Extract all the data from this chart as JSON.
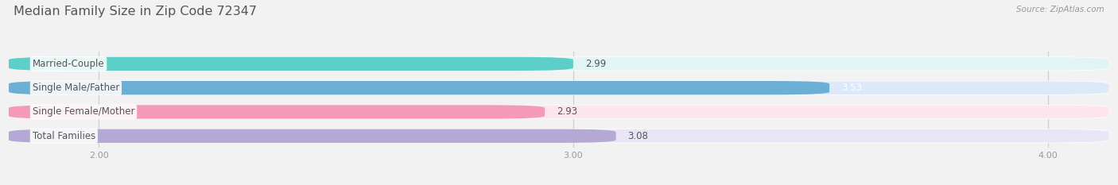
{
  "title": "Median Family Size in Zip Code 72347",
  "source": "Source: ZipAtlas.com",
  "categories": [
    "Married-Couple",
    "Single Male/Father",
    "Single Female/Mother",
    "Total Families"
  ],
  "values": [
    2.99,
    3.53,
    2.93,
    3.08
  ],
  "bar_colors": [
    "#5ecfc8",
    "#6baed6",
    "#f49ab8",
    "#b5a8d5"
  ],
  "bar_bg_colors": [
    "#e0f5f4",
    "#dce9f8",
    "#fce5ee",
    "#eae5f5"
  ],
  "value_colors": [
    "#555555",
    "#ffffff",
    "#555555",
    "#555555"
  ],
  "xlim_min": 1.82,
  "xlim_max": 4.12,
  "xticks": [
    2.0,
    3.0,
    4.0
  ],
  "xtick_labels": [
    "2.00",
    "3.00",
    "4.00"
  ],
  "bar_height": 0.55,
  "title_fontsize": 11.5,
  "label_fontsize": 8.5,
  "value_fontsize": 8.5,
  "source_fontsize": 7.5,
  "bg_color": "#f2f2f2",
  "text_color": "#555555",
  "grid_color": "#cccccc",
  "source_color": "#999999"
}
